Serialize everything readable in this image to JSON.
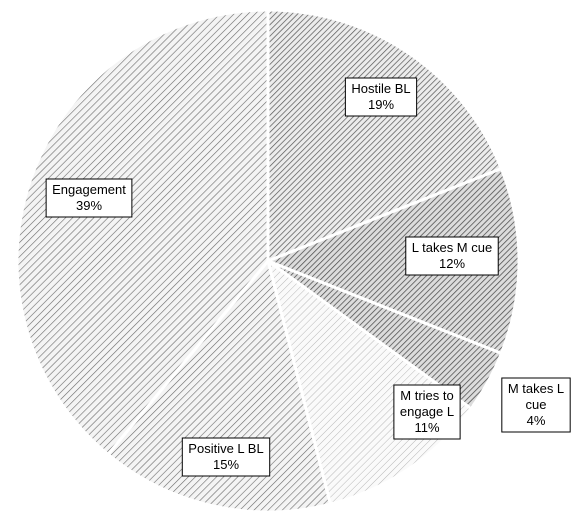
{
  "chart_data": {
    "type": "pie",
    "title": "",
    "start_angle_deg": 0,
    "direction": "clockwise",
    "slices": [
      {
        "label": [
          "Hostile BL"
        ],
        "value_label": "19%",
        "value": 19,
        "pattern": "dense"
      },
      {
        "label": [
          "L takes M cue"
        ],
        "value_label": "12%",
        "value": 12,
        "pattern": "cross"
      },
      {
        "label": [
          "M takes L",
          "cue"
        ],
        "value_label": "4%",
        "value": 4,
        "pattern": "cross"
      },
      {
        "label": [
          "M tries to",
          "engage L"
        ],
        "value_label": "11%",
        "value": 11,
        "pattern": "light"
      },
      {
        "label": [
          "Positive L BL"
        ],
        "value_label": "15%",
        "value": 15,
        "pattern": "diag"
      },
      {
        "label": [
          "Engagement"
        ],
        "value_label": "39%",
        "value": 39,
        "pattern": "diag"
      }
    ]
  }
}
